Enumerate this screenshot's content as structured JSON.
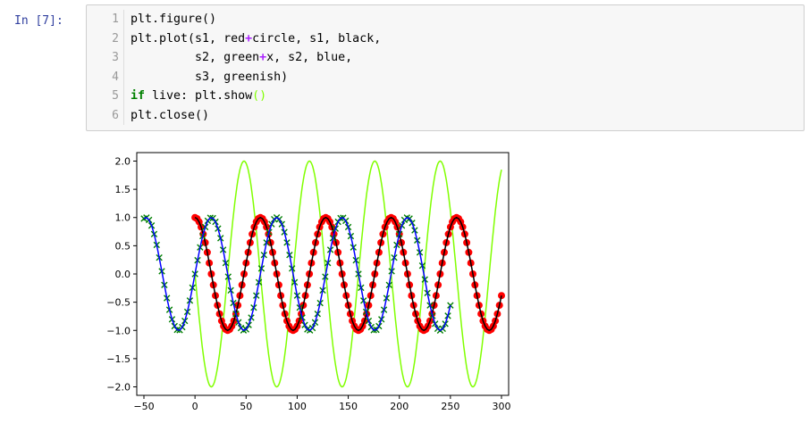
{
  "prompt": "In [7]:",
  "cell": {
    "line_numbers": [
      "1",
      "2",
      "3",
      "4",
      "5",
      "6"
    ],
    "lines": [
      [
        {
          "t": "plt.figure()",
          "c": ""
        }
      ],
      [
        {
          "t": "plt.plot(s1, red",
          "c": ""
        },
        {
          "t": "+",
          "c": "op"
        },
        {
          "t": "circle, s1, black,",
          "c": ""
        }
      ],
      [
        {
          "t": "         s2, green",
          "c": ""
        },
        {
          "t": "+",
          "c": "op"
        },
        {
          "t": "x, s2, blue,",
          "c": ""
        }
      ],
      [
        {
          "t": "         s3, greenish)",
          "c": ""
        }
      ],
      [
        {
          "t": "if",
          "c": "kw"
        },
        {
          "t": " live: plt.show",
          "c": ""
        },
        {
          "t": "()",
          "c": "paren-hl"
        }
      ],
      [
        {
          "t": "plt.close()",
          "c": ""
        }
      ]
    ]
  },
  "chart_data": {
    "type": "line",
    "title": "",
    "xlabel": "",
    "ylabel": "",
    "xlim": [
      -57,
      307
    ],
    "ylim": [
      -2.15,
      2.15
    ],
    "xticks": [
      -50,
      0,
      50,
      100,
      150,
      200,
      250,
      300
    ],
    "xtick_labels": [
      "−50",
      "0",
      "50",
      "100",
      "150",
      "200",
      "250",
      "300"
    ],
    "yticks": [
      2.0,
      1.5,
      1.0,
      0.5,
      0.0,
      -0.5,
      -1.0,
      -1.5,
      -2.0
    ],
    "ytick_labels": [
      "2.0",
      "1.5",
      "1.0",
      "0.5",
      "0.0",
      "−0.5",
      "−1.0",
      "−1.5",
      "−2.0"
    ],
    "grid": false,
    "series": [
      {
        "id": "s1",
        "style": "red circle markers + black line",
        "color": "#ff0000",
        "line_color": "#000000",
        "marker": "circle",
        "function": "cos(2*pi*x/64)",
        "x_start": 0,
        "x_end": 300,
        "x_step": 2
      },
      {
        "id": "s2",
        "style": "green x markers + blue line",
        "color": "#008000",
        "line_color": "#0000ff",
        "marker": "x",
        "function": "sin(2*pi*x/64)",
        "x_start": -50,
        "x_end": 250,
        "x_step": 2.5
      },
      {
        "id": "s3",
        "style": "greenish line",
        "color": "#80ff00",
        "line_color": "#80ff00",
        "marker": "none",
        "function": "-2*sin(2*pi*x/64)",
        "x_start": 0,
        "x_end": 300,
        "x_step": 1
      }
    ]
  }
}
